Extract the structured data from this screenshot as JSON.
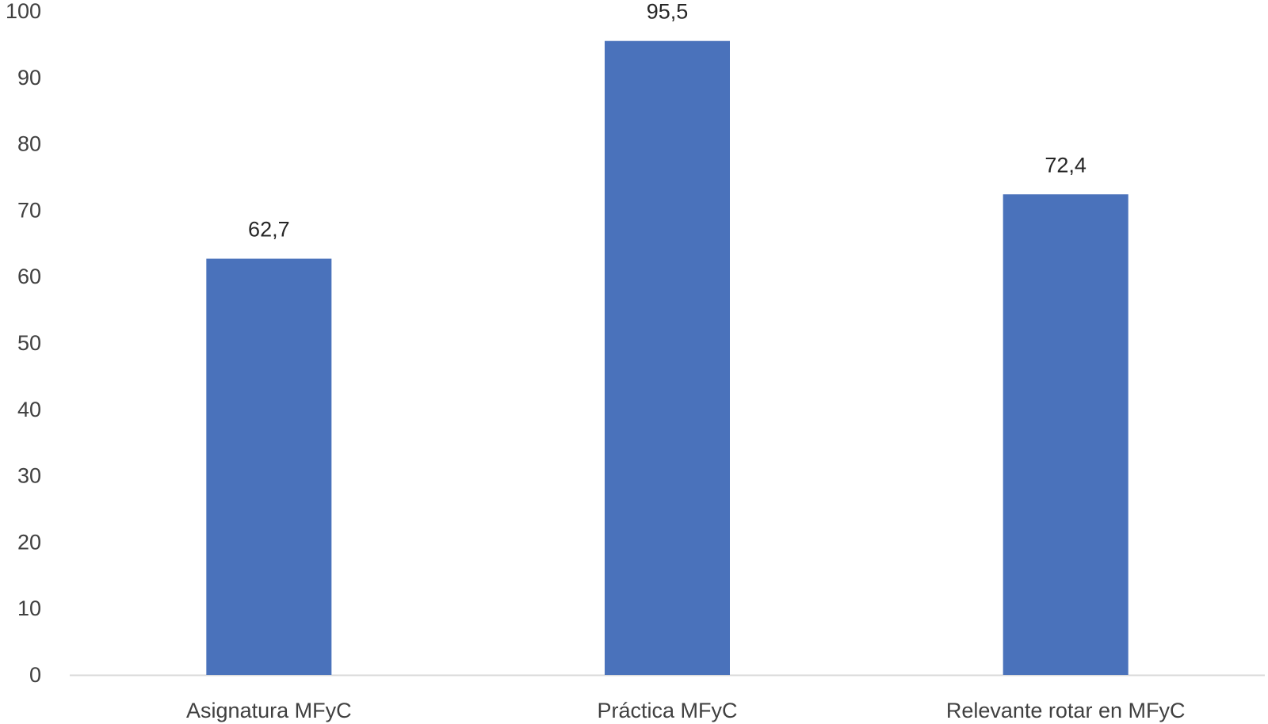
{
  "chart_data": {
    "type": "bar",
    "title": "",
    "xlabel": "",
    "ylabel": "",
    "categories": [
      "Asignatura MFyC",
      "Práctica MFyC",
      "Relevante rotar en MFyC"
    ],
    "values": [
      62.7,
      95.5,
      72.4
    ],
    "data_labels": [
      "62,7",
      "95,5",
      "72,4"
    ],
    "ylim": [
      0,
      100
    ],
    "yticks": [
      0,
      10,
      20,
      30,
      40,
      50,
      60,
      70,
      80,
      90,
      100
    ],
    "ytick_labels": [
      "0",
      "10",
      "20",
      "30",
      "40",
      "50",
      "60",
      "70",
      "80",
      "90",
      "100"
    ],
    "grid": false,
    "legend": "none",
    "bar_color": "#4a72bb",
    "axis_color": "#d9d9d9"
  }
}
